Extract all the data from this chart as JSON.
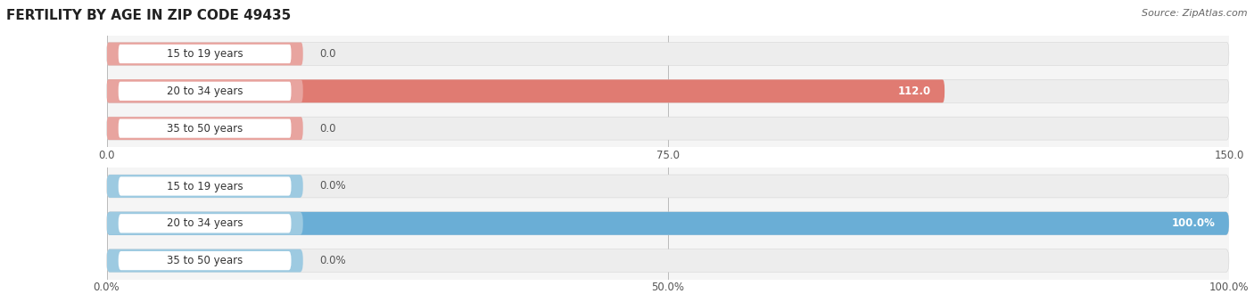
{
  "title": "FERTILITY BY AGE IN ZIP CODE 49435",
  "source": "Source: ZipAtlas.com",
  "top_chart": {
    "categories": [
      "15 to 19 years",
      "20 to 34 years",
      "35 to 50 years"
    ],
    "values": [
      0.0,
      112.0,
      0.0
    ],
    "xlim": [
      0,
      150
    ],
    "xticks": [
      0.0,
      75.0,
      150.0
    ],
    "xtick_labels": [
      "0.0",
      "75.0",
      "150.0"
    ],
    "bar_color": "#e07b72",
    "bar_stub_color": "#e8a49f",
    "bar_bg_color": "#ededed",
    "label_inside_color": "#ffffff",
    "label_outside_color": "#555555"
  },
  "bottom_chart": {
    "categories": [
      "15 to 19 years",
      "20 to 34 years",
      "35 to 50 years"
    ],
    "values": [
      0.0,
      100.0,
      0.0
    ],
    "xlim": [
      0,
      100
    ],
    "xticks": [
      0.0,
      50.0,
      100.0
    ],
    "xtick_labels": [
      "0.0%",
      "50.0%",
      "100.0%"
    ],
    "bar_color": "#6aaed6",
    "bar_stub_color": "#9dcae1",
    "bar_bg_color": "#ededed",
    "label_inside_color": "#ffffff",
    "label_outside_color": "#555555"
  },
  "bg_color": "#f5f5f5",
  "bar_height": 0.62,
  "label_fontsize": 8.5,
  "category_fontsize": 8.5,
  "title_fontsize": 11,
  "source_fontsize": 8
}
